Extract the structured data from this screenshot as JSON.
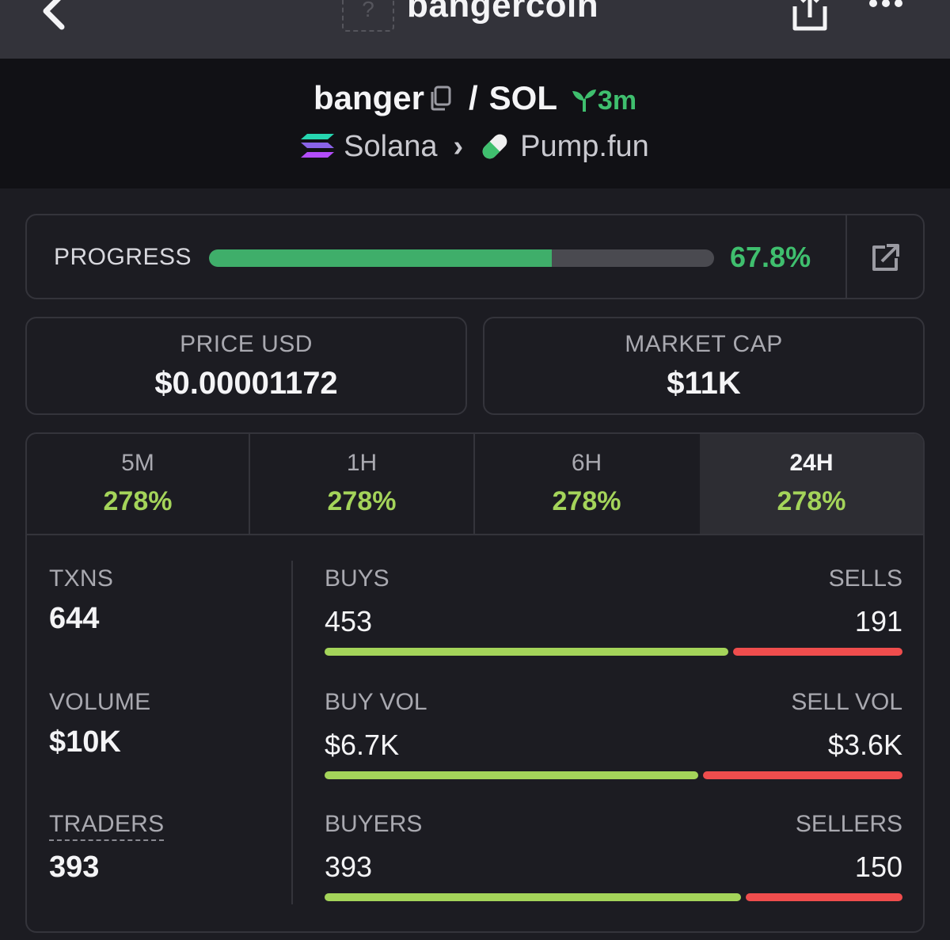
{
  "header": {
    "title": "bangercoin",
    "avatar_placeholder": "?"
  },
  "pair": {
    "base": "banger",
    "separator": "/",
    "quote": "SOL",
    "age": "3m",
    "chain": "Solana",
    "dex": "Pump.fun"
  },
  "progress": {
    "label": "PROGRESS",
    "value_text": "67.8%",
    "fraction": 0.678
  },
  "price": {
    "label": "PRICE USD",
    "value": "$0.00001172"
  },
  "market_cap": {
    "label": "MARKET CAP",
    "value": "$11K"
  },
  "tabs": [
    {
      "label": "5M",
      "value": "278%",
      "active": false
    },
    {
      "label": "1H",
      "value": "278%",
      "active": false
    },
    {
      "label": "6H",
      "value": "278%",
      "active": false
    },
    {
      "label": "24H",
      "value": "278%",
      "active": true
    }
  ],
  "stats": {
    "txns": {
      "label": "TXNS",
      "value": "644"
    },
    "volume": {
      "label": "VOLUME",
      "value": "$10K"
    },
    "traders": {
      "label": "TRADERS",
      "value": "393"
    },
    "buys_sells": {
      "left_label": "BUYS",
      "left_value": "453",
      "right_label": "SELLS",
      "right_value": "191",
      "buy_fraction": 0.703
    },
    "vol_split": {
      "left_label": "BUY VOL",
      "left_value": "$6.7K",
      "right_label": "SELL VOL",
      "right_value": "$3.6K",
      "buy_fraction": 0.65
    },
    "trader_split": {
      "left_label": "BUYERS",
      "left_value": "393",
      "right_label": "SELLERS",
      "right_value": "150",
      "buy_fraction": 0.724
    }
  },
  "colors": {
    "accent_green": "#3fbf6e",
    "change_green": "#a4d45a",
    "sell_red": "#ef4d4d",
    "background": "#1c1c22"
  }
}
